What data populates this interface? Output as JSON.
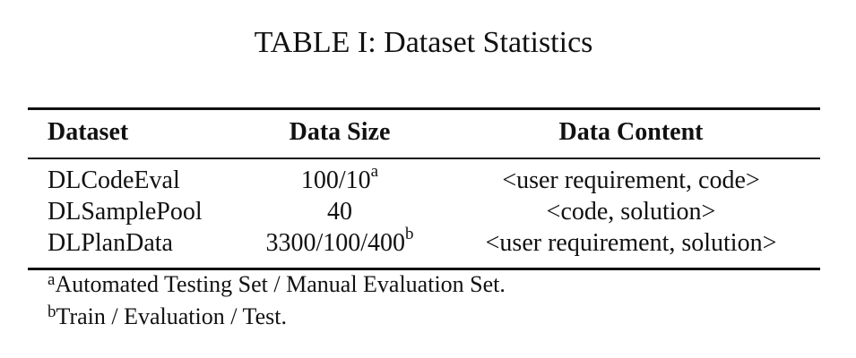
{
  "caption": "TABLE I: Dataset Statistics",
  "table": {
    "headers": [
      "Dataset",
      "Data Size",
      "Data Content"
    ],
    "rows": [
      {
        "dataset": "DLCodeEval",
        "size": "100/10",
        "size_mark": "a",
        "content": "<user requirement, code>"
      },
      {
        "dataset": "DLSamplePool",
        "size": "40",
        "size_mark": "",
        "content": "<code, solution>"
      },
      {
        "dataset": "DLPlanData",
        "size": "3300/100/400",
        "size_mark": "b",
        "content": "<user requirement, solution>"
      }
    ]
  },
  "footnotes": [
    {
      "mark": "a",
      "text": "Automated Testing Set / Manual Evaluation Set."
    },
    {
      "mark": "b",
      "text": "Train / Evaluation / Test."
    }
  ]
}
